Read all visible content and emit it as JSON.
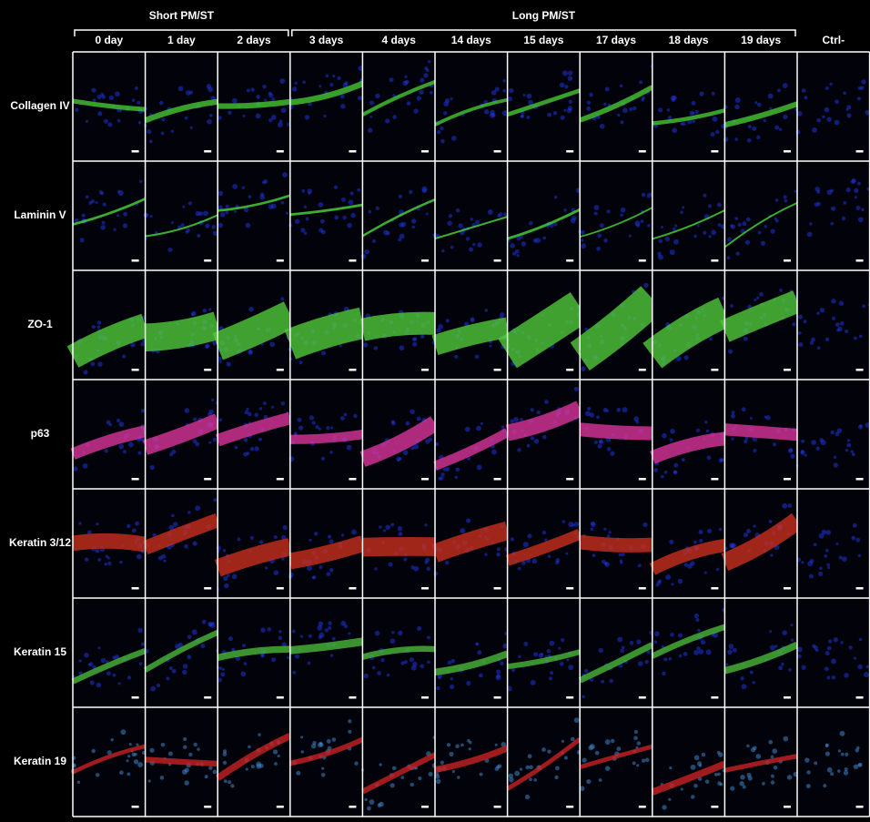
{
  "groups": [
    "Short PM/ST",
    "Long PM/ST"
  ],
  "columns": [
    "0 day",
    "1 day",
    "2 days",
    "3 days",
    "4 days",
    "14 days",
    "15 days",
    "17 days",
    "18 days",
    "19 days",
    "Ctrl-"
  ],
  "rows": [
    "Collagen IV",
    "Laminin V",
    "ZO-1",
    "p63",
    "Keratin 3/12",
    "Keratin 15",
    "Keratin 19"
  ]
}
